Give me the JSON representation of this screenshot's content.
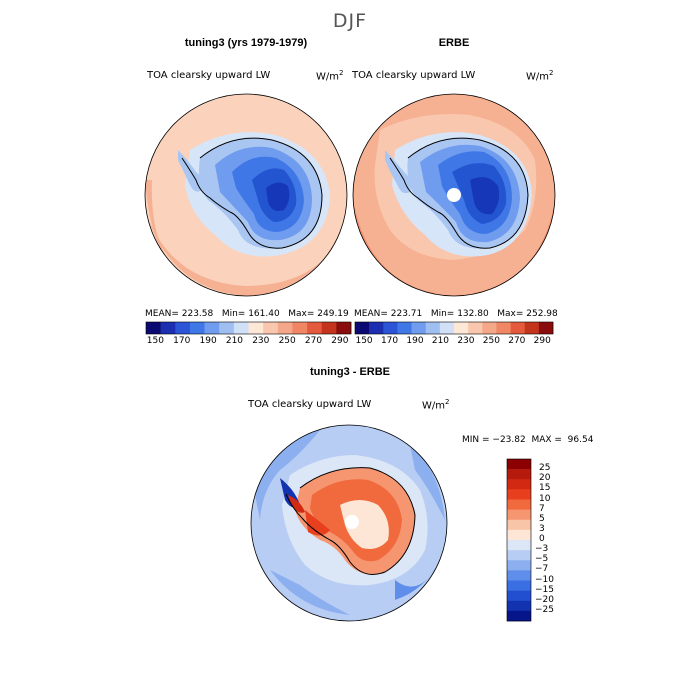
{
  "page": {
    "title": "DJF"
  },
  "panels": [
    {
      "title": "tuning3 (yrs 1979-1979)",
      "variable": "TOA clearsky upward LW",
      "units_base": "W/m",
      "units_exp": "2",
      "stats": "MEAN= 223.58   Min= 161.40   Max= 249.19",
      "colorbar": {
        "colors": [
          "#0a0a72",
          "#1b2fb0",
          "#2b55d6",
          "#3f78e6",
          "#6f9cef",
          "#9fbff3",
          "#cfe0f7",
          "#fde8d8",
          "#f9c7ad",
          "#f5a789",
          "#f08663",
          "#e35b3c",
          "#c3331e",
          "#8b0c0c"
        ],
        "ticks": [
          "150",
          "170",
          "190",
          "210",
          "230",
          "250",
          "270",
          "290"
        ]
      }
    },
    {
      "title": "ERBE",
      "variable": "TOA clearsky upward LW",
      "units_base": "W/m",
      "units_exp": "2",
      "stats": "MEAN= 223.71   Min= 132.80   Max= 252.98",
      "colorbar": {
        "colors": [
          "#0a0a72",
          "#1b2fb0",
          "#2b55d6",
          "#3f78e6",
          "#6f9cef",
          "#9fbff3",
          "#cfe0f7",
          "#fde8d8",
          "#f9c7ad",
          "#f5a789",
          "#f08663",
          "#e35b3c",
          "#c3331e",
          "#8b0c0c"
        ],
        "ticks": [
          "150",
          "170",
          "190",
          "210",
          "230",
          "250",
          "270",
          "290"
        ]
      }
    },
    {
      "title": "tuning3 - ERBE",
      "variable": "TOA clearsky upward LW",
      "units_base": "W/m",
      "units_exp": "2",
      "stats": "MIN = −23.82  MAX =  96.54",
      "colorbar": {
        "colors": [
          "#8b0000",
          "#b51a0d",
          "#d22a12",
          "#e8401f",
          "#f06a3e",
          "#f59670",
          "#f9c5a8",
          "#fde6d6",
          "#dbe6f7",
          "#b8cdf3",
          "#8cb0ef",
          "#5f8eea",
          "#3a6ee3",
          "#214fd0",
          "#1232b0",
          "#06158a"
        ],
        "labels": [
          "25",
          "20",
          "15",
          "10",
          "7",
          "5",
          "3",
          "0",
          "−3",
          "−5",
          "−7",
          "−10",
          "−15",
          "−20",
          "−25"
        ]
      }
    }
  ],
  "map_palette": {
    "ocean_light": "#fbd3bd",
    "ocean_mid": "#f6b092",
    "ocean_deep": "#f1906e",
    "ice_light": "#d7e5f8",
    "ice_mid": "#a9c5f2",
    "land_1": "#6f9cef",
    "land_2": "#3f78e6",
    "land_3": "#2455d0",
    "land_4": "#1638b8",
    "diff_ocean": "#b8cdf3",
    "diff_ocean2": "#8cb0ef",
    "diff_land": "#ef6d45",
    "diff_land2": "#f59a72",
    "diff_light": "#f8e0d6"
  }
}
